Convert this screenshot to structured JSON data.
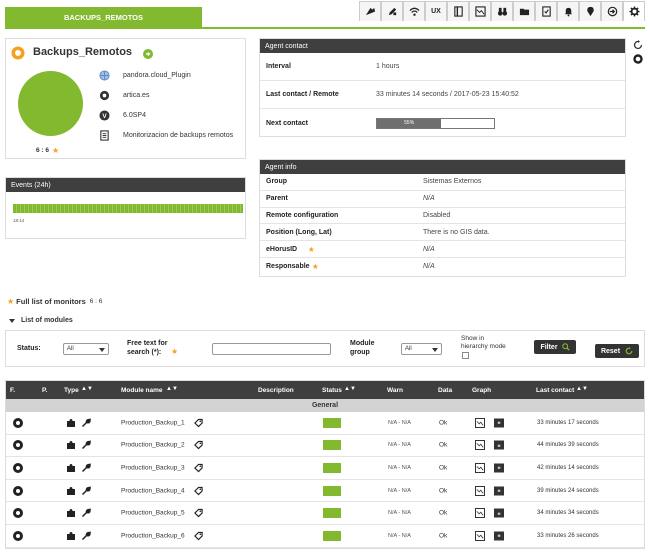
{
  "tabs": {
    "active": "BACKUPS_REMOTOS",
    "ux_label": "UX"
  },
  "toolbar_icons": [
    "manage-icon",
    "edit-icon",
    "wifi-icon",
    "ux-icon",
    "notebook-icon",
    "graph-icon",
    "binoculars-icon",
    "folder-icon",
    "checklist-icon",
    "bell-icon",
    "map-pin-icon",
    "login-icon",
    "gear-icon"
  ],
  "agent": {
    "name": "Backups_Remotos",
    "server": "pandora.cloud_Plugin",
    "url": "artica.es",
    "version": "6.0SP4",
    "description": "Monitorizacion de backups remotos",
    "module_count": "6 : 6",
    "color": "#82b92e"
  },
  "agent_contact": {
    "title": "Agent contact",
    "rows": [
      {
        "key": "Interval",
        "value": "1 hours"
      },
      {
        "key": "Last contact / Remote",
        "value": "33 minutes 14 seconds / 2017-05-23 15:40:52"
      },
      {
        "key": "Next contact",
        "value": "55%",
        "progress": 0.55
      }
    ]
  },
  "events": {
    "title": "Events (24h)",
    "time_label": "18:14"
  },
  "agent_info": {
    "title": "Agent info",
    "rows": [
      {
        "key": "Group",
        "value": "Sistemas Externos"
      },
      {
        "key": "Parent",
        "value": "N/A"
      },
      {
        "key": "Remote configuration",
        "value": "Disabled"
      },
      {
        "key": "Position (Long, Lat)",
        "value": "There is no GIS data."
      },
      {
        "key": "eHorusID",
        "value": "N/A"
      },
      {
        "key": "Responsable",
        "value": "N/A"
      }
    ]
  },
  "monitors": {
    "title": "Full list of monitors",
    "count": "6 : 6",
    "list_title": "List of modules"
  },
  "filter": {
    "status_label": "Status:",
    "status_value": "All",
    "free_text_label_1": "Free text for",
    "free_text_label_2": "search (*):",
    "module_group_label_1": "Module",
    "module_group_label_2": "group",
    "module_group_value": "All",
    "hierarchy_label_1": "Show in",
    "hierarchy_label_2": "hierarchy mode",
    "filter_button": "Filter",
    "reset_button": "Reset"
  },
  "table": {
    "headers": {
      "f": "F.",
      "p": "P.",
      "type": "Type",
      "module_name": "Module name",
      "description": "Description",
      "status": "Status",
      "warn": "Warn",
      "data": "Data",
      "graph": "Graph",
      "last_contact": "Last contact"
    },
    "group": "General",
    "rows": [
      {
        "name": "Production_Backup_1",
        "warn": "N/A - N/A",
        "data": "Ok",
        "last_contact": "33 minutes 17 seconds"
      },
      {
        "name": "Production_Backup_2",
        "warn": "N/A - N/A",
        "data": "Ok",
        "last_contact": "44 minutes 39 seconds"
      },
      {
        "name": "Production_Backup_3",
        "warn": "N/A - N/A",
        "data": "Ok",
        "last_contact": "42 minutes 14 seconds"
      },
      {
        "name": "Production_Backup_4",
        "warn": "N/A - N/A",
        "data": "Ok",
        "last_contact": "39 minutes 24 seconds"
      },
      {
        "name": "Production_Backup_5",
        "warn": "N/A - N/A",
        "data": "Ok",
        "last_contact": "34 minutes 34 seconds"
      },
      {
        "name": "Production_Backup_6",
        "warn": "N/A - N/A",
        "data": "Ok",
        "last_contact": "33 minutes 26 seconds"
      }
    ]
  }
}
